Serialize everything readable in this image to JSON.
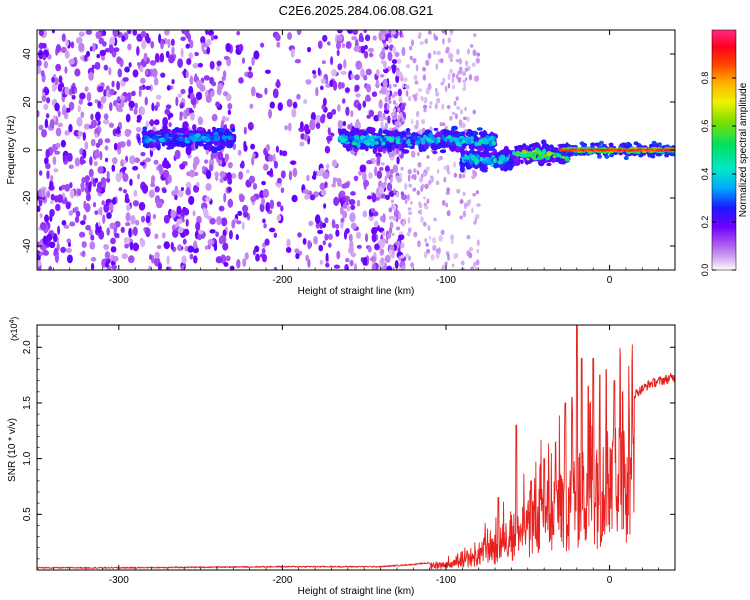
{
  "title": "C2E6.2025.284.06.08.G21",
  "chart_data": [
    {
      "type": "heatmap",
      "name": "spectrogram",
      "xlabel": "Height of straight line (km)",
      "ylabel": "Frequency (Hz)",
      "xlim": [
        -350,
        40
      ],
      "ylim": [
        -50,
        50
      ],
      "xticks": [
        -300,
        -200,
        -100,
        0
      ],
      "yticks": [
        -40,
        -20,
        0,
        20,
        40
      ],
      "colorbar": {
        "label": "Normalized spectral amplitude",
        "range": [
          0.0,
          1.0
        ],
        "ticks": [
          0.0,
          0.2,
          0.4,
          0.6,
          0.8
        ],
        "tick_labels": [
          "0.0",
          "0.2",
          "0.4",
          "0.6",
          "0.8"
        ]
      },
      "features": [
        {
          "x_range": [
            -350,
            -125
          ],
          "freq_range": [
            -50,
            50
          ],
          "amplitude": 0.1,
          "kind": "scattered noise"
        },
        {
          "x_range": [
            -285,
            -230
          ],
          "freq_center": 5,
          "amplitude": 0.3,
          "kind": "band"
        },
        {
          "x_range": [
            -165,
            -70
          ],
          "freq_center": 4,
          "amplitude": 0.35,
          "kind": "band"
        },
        {
          "x_range": [
            -90,
            -60
          ],
          "freq_center": -4,
          "amplitude": 0.35,
          "kind": "band"
        },
        {
          "x_range": [
            -60,
            -25
          ],
          "freq_center": -2,
          "amplitude": 0.5,
          "kind": "band"
        },
        {
          "x_range": [
            -30,
            40
          ],
          "freq_center": 0,
          "amplitude": 0.95,
          "kind": "line"
        }
      ]
    },
    {
      "type": "line",
      "name": "snr",
      "xlabel": "Height of straight line (km)",
      "ylabel": "SNR (10 * v/v)",
      "y_scale_note": "(x10",
      "y_scale_exp": "4",
      "y_scale_close": ")",
      "xlim": [
        -350,
        40
      ],
      "ylim": [
        0,
        2.2
      ],
      "xticks": [
        -300,
        -200,
        -100,
        0
      ],
      "yticks": [
        0.5,
        1.0,
        1.5,
        2.0
      ],
      "ytick_labels": [
        "0.5",
        "1.0",
        "1.5",
        "2.0"
      ],
      "color": "#e8201e",
      "series": [
        {
          "name": "SNR envelope",
          "x": [
            -350,
            -300,
            -200,
            -140,
            -120,
            -100,
            -90,
            -80,
            -75,
            -70,
            -65,
            -60,
            -55,
            -50,
            -45,
            -40,
            -35,
            -30,
            -25,
            -20,
            -15,
            -10,
            -5,
            0,
            5,
            10,
            15,
            20,
            25,
            30,
            35,
            40
          ],
          "y": [
            0.02,
            0.02,
            0.03,
            0.03,
            0.05,
            0.08,
            0.12,
            0.2,
            0.35,
            0.3,
            0.45,
            0.55,
            0.5,
            0.65,
            0.7,
            0.85,
            0.8,
            0.95,
            1.0,
            1.1,
            1.2,
            1.3,
            1.25,
            1.4,
            1.45,
            1.55,
            1.6,
            1.65,
            1.7,
            1.72,
            1.74,
            1.76
          ]
        },
        {
          "name": "SNR peaks",
          "x": [
            -68,
            -57,
            -48,
            -40,
            -33,
            -27,
            -23,
            -20,
            -17,
            -13,
            -10,
            -6,
            -2,
            3,
            8
          ],
          "y": [
            0.65,
            1.3,
            0.8,
            1.0,
            1.15,
            1.5,
            1.55,
            2.2,
            1.9,
            1.65,
            1.9,
            1.75,
            1.8,
            1.7,
            1.6
          ]
        }
      ]
    }
  ]
}
